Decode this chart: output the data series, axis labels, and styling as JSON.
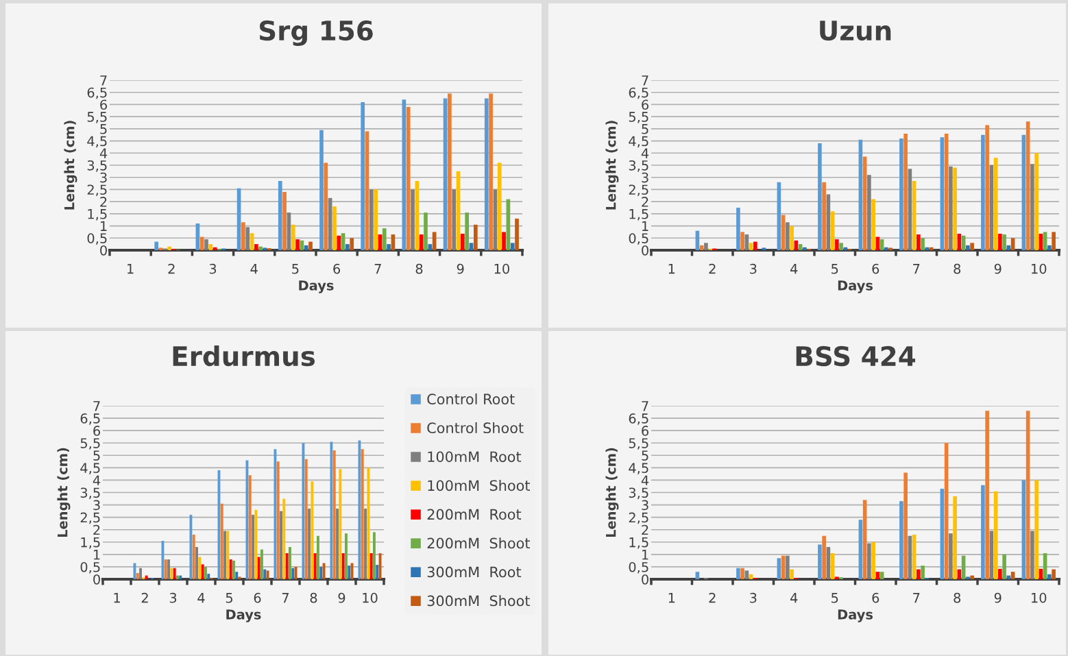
{
  "chart_data": [
    {
      "type": "bar",
      "title": "Srg 156",
      "xlabel": "Days",
      "ylabel": "Lenght (cm)",
      "categories": [
        "1",
        "2",
        "3",
        "4",
        "5",
        "6",
        "7",
        "8",
        "9",
        "10"
      ],
      "ylim": [
        0,
        7
      ],
      "yticks": [
        0,
        {
          "value": 0.5,
          "label": "0,5"
        },
        1,
        {
          "value": 1.5,
          "label": "1,5"
        },
        2,
        {
          "value": 2.5,
          "label": "2,5"
        },
        3,
        {
          "value": 3.5,
          "label": "3,5"
        },
        4,
        {
          "value": 4.5,
          "label": "4,5"
        },
        5,
        {
          "value": 5.5,
          "label": "5,5"
        },
        6,
        {
          "value": 6.5,
          "label": "6,5"
        },
        7
      ],
      "grid": "y",
      "series": [
        {
          "color": "#5b9bd5",
          "values": [
            0,
            0.35,
            1.1,
            2.55,
            2.85,
            4.95,
            6.1,
            6.2,
            6.25,
            6.25
          ]
        },
        {
          "color": "#ed7d31",
          "values": [
            0,
            0.1,
            0.55,
            1.15,
            2.4,
            3.6,
            4.9,
            5.9,
            6.45,
            6.45
          ]
        },
        {
          "color": "#7f7f7f",
          "values": [
            0,
            0.07,
            0.45,
            0.95,
            1.55,
            2.15,
            2.5,
            2.5,
            2.5,
            2.5
          ]
        },
        {
          "color": "#ffc000",
          "values": [
            0,
            0.15,
            0.25,
            0.7,
            1.05,
            1.8,
            2.5,
            2.85,
            3.25,
            3.6
          ]
        },
        {
          "color": "#ff0000",
          "values": [
            0,
            0.05,
            0.12,
            0.25,
            0.45,
            0.6,
            0.65,
            0.65,
            0.68,
            0.75
          ]
        },
        {
          "color": "#70ad47",
          "values": [
            0,
            0.02,
            0.05,
            0.15,
            0.4,
            0.7,
            0.9,
            1.55,
            1.55,
            2.1
          ]
        },
        {
          "color": "#2e75b6",
          "values": [
            0,
            0,
            0.07,
            0.1,
            0.2,
            0.25,
            0.25,
            0.25,
            0.3,
            0.3
          ]
        },
        {
          "color": "#c55a11",
          "values": [
            0,
            0,
            0,
            0.08,
            0.35,
            0.5,
            0.65,
            0.75,
            1.05,
            1.3
          ]
        }
      ]
    },
    {
      "type": "bar",
      "title": "Uzun",
      "xlabel": "Days",
      "ylabel": "Lenght (cm)",
      "categories": [
        "1",
        "2",
        "3",
        "4",
        "5",
        "6",
        "7",
        "8",
        "9",
        "10"
      ],
      "ylim": [
        0,
        7
      ],
      "yticks": [
        0,
        {
          "value": 0.5,
          "label": "0,5"
        },
        1,
        {
          "value": 1.5,
          "label": "1,5"
        },
        2,
        {
          "value": 2.5,
          "label": "2,5"
        },
        3,
        {
          "value": 3.5,
          "label": "3,5"
        },
        4,
        {
          "value": 4.5,
          "label": "4,5"
        },
        5,
        {
          "value": 5.5,
          "label": "5,5"
        },
        6,
        {
          "value": 6.5,
          "label": "6,5"
        },
        7
      ],
      "grid": "y",
      "series": [
        {
          "color": "#5b9bd5",
          "values": [
            0,
            0.8,
            1.75,
            2.8,
            4.4,
            4.55,
            4.6,
            4.65,
            4.75,
            4.75
          ]
        },
        {
          "color": "#ed7d31",
          "values": [
            0,
            0.2,
            0.75,
            1.45,
            2.8,
            3.85,
            4.8,
            4.8,
            5.15,
            5.3
          ]
        },
        {
          "color": "#7f7f7f",
          "values": [
            0,
            0.3,
            0.65,
            1.15,
            2.3,
            3.1,
            3.35,
            3.45,
            3.5,
            3.55
          ]
        },
        {
          "color": "#ffc000",
          "values": [
            0,
            0.05,
            0.3,
            1.0,
            1.6,
            2.1,
            2.85,
            3.4,
            3.8,
            4.0
          ]
        },
        {
          "color": "#ff0000",
          "values": [
            0,
            0.07,
            0.35,
            0.4,
            0.45,
            0.55,
            0.65,
            0.68,
            0.68,
            0.68
          ]
        },
        {
          "color": "#70ad47",
          "values": [
            0,
            0,
            0,
            0.25,
            0.3,
            0.45,
            0.5,
            0.6,
            0.65,
            0.75
          ]
        },
        {
          "color": "#2e75b6",
          "values": [
            0,
            0,
            0.1,
            0.12,
            0.12,
            0.12,
            0.12,
            0.2,
            0.2,
            0.2
          ]
        },
        {
          "color": "#c55a11",
          "values": [
            0,
            0,
            0,
            0.05,
            0.05,
            0.1,
            0.12,
            0.3,
            0.5,
            0.75
          ]
        }
      ]
    },
    {
      "type": "bar",
      "title": "Erdurmus",
      "xlabel": "Days",
      "ylabel": "Lenght (cm)",
      "categories": [
        "1",
        "2",
        "3",
        "4",
        "5",
        "6",
        "7",
        "8",
        "9",
        "10"
      ],
      "ylim": [
        0,
        7
      ],
      "yticks": [
        0,
        {
          "value": 0.5,
          "label": "0,5"
        },
        1,
        {
          "value": 1.5,
          "label": "1,5"
        },
        2,
        {
          "value": 2.5,
          "label": "2,5"
        },
        3,
        {
          "value": 3.5,
          "label": "3,5"
        },
        4,
        {
          "value": 4.5,
          "label": "4,5"
        },
        5,
        {
          "value": 5.5,
          "label": "5,5"
        },
        6,
        {
          "value": 6.5,
          "label": "6,5"
        },
        7
      ],
      "grid": "y",
      "legend": "right",
      "series": [
        {
          "name": "Control Root",
          "color": "#5b9bd5",
          "values": [
            0,
            0.65,
            1.55,
            2.6,
            4.4,
            4.8,
            5.25,
            5.5,
            5.55,
            5.6
          ]
        },
        {
          "name": "Control Shoot",
          "color": "#ed7d31",
          "values": [
            0,
            0.25,
            0.8,
            1.8,
            3.05,
            4.2,
            4.75,
            4.85,
            5.2,
            5.25
          ]
        },
        {
          "name": "100mM  Root",
          "color": "#7f7f7f",
          "values": [
            0,
            0.45,
            0.8,
            1.3,
            1.95,
            2.6,
            2.75,
            2.85,
            2.85,
            2.85
          ]
        },
        {
          "name": "100mM  Shoot",
          "color": "#ffc000",
          "values": [
            0,
            0.07,
            0.45,
            0.9,
            1.95,
            2.8,
            3.25,
            3.95,
            4.45,
            4.5
          ]
        },
        {
          "name": "200mM  Root",
          "color": "#ff0000",
          "values": [
            0,
            0.15,
            0.45,
            0.6,
            0.8,
            0.9,
            1.05,
            1.05,
            1.05,
            1.05
          ]
        },
        {
          "name": "200mM  Shoot",
          "color": "#70ad47",
          "values": [
            0,
            0,
            0.15,
            0.5,
            0.75,
            1.2,
            1.3,
            1.75,
            1.85,
            1.9
          ]
        },
        {
          "name": "300mM  Root",
          "color": "#2e75b6",
          "values": [
            0,
            0.05,
            0.15,
            0.22,
            0.3,
            0.4,
            0.45,
            0.5,
            0.55,
            0.58
          ]
        },
        {
          "name": "300mM  Shoot",
          "color": "#c55a11",
          "values": [
            0,
            0,
            0,
            0.05,
            0.1,
            0.35,
            0.5,
            0.65,
            0.65,
            1.05
          ]
        }
      ]
    },
    {
      "type": "bar",
      "title": "BSS 424",
      "xlabel": "Days",
      "ylabel": "Lenght (cm)",
      "categories": [
        "1",
        "2",
        "3",
        "4",
        "5",
        "6",
        "7",
        "8",
        "9",
        "10"
      ],
      "ylim": [
        0,
        7
      ],
      "yticks": [
        0,
        {
          "value": 0.5,
          "label": "0,5"
        },
        1,
        {
          "value": 1.5,
          "label": "1,5"
        },
        2,
        {
          "value": 2.5,
          "label": "2,5"
        },
        3,
        {
          "value": 3.5,
          "label": "3,5"
        },
        4,
        {
          "value": 4.5,
          "label": "4,5"
        },
        5,
        {
          "value": 5.5,
          "label": "5,5"
        },
        6,
        {
          "value": 6.5,
          "label": "6,5"
        },
        7
      ],
      "grid": "y",
      "series": [
        {
          "color": "#5b9bd5",
          "values": [
            0,
            0.3,
            0.45,
            0.85,
            1.4,
            2.4,
            3.15,
            3.65,
            3.8,
            4.0
          ]
        },
        {
          "color": "#ed7d31",
          "values": [
            0,
            0,
            0.45,
            0.95,
            1.75,
            3.2,
            4.3,
            5.5,
            6.8,
            6.8
          ]
        },
        {
          "color": "#7f7f7f",
          "values": [
            0,
            0.05,
            0.35,
            0.95,
            1.3,
            1.45,
            1.75,
            1.85,
            1.95,
            1.95
          ]
        },
        {
          "color": "#ffc000",
          "values": [
            0,
            0,
            0.2,
            0.4,
            1.05,
            1.5,
            1.8,
            3.35,
            3.55,
            4.0
          ]
        },
        {
          "color": "#ff0000",
          "values": [
            0,
            0,
            0.05,
            0.05,
            0.1,
            0.3,
            0.4,
            0.4,
            0.42,
            0.42
          ]
        },
        {
          "color": "#70ad47",
          "values": [
            0,
            0,
            0,
            0,
            0.08,
            0.3,
            0.55,
            0.95,
            1.0,
            1.05
          ]
        },
        {
          "color": "#2e75b6",
          "values": [
            0,
            0,
            0,
            0,
            0,
            0,
            0.05,
            0.1,
            0.15,
            0.2
          ]
        },
        {
          "color": "#c55a11",
          "values": [
            0,
            0,
            0,
            0,
            0,
            0,
            0,
            0.15,
            0.3,
            0.4
          ]
        }
      ]
    }
  ]
}
